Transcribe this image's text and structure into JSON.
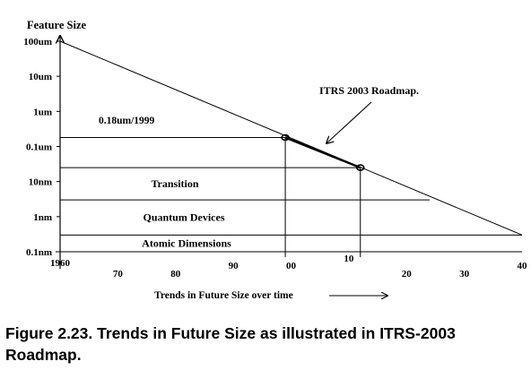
{
  "chart_data": {
    "type": "line",
    "y_axis_label": "Feature Size",
    "y_tick_labels": [
      "100um",
      "10um",
      "1um",
      "0.1um",
      "10nm",
      "1nm",
      "0.1nm"
    ],
    "y_tick_values_m": [
      0.0001,
      1e-05,
      1e-06,
      1e-07,
      1e-08,
      1e-09,
      1e-10
    ],
    "y_scale": "log",
    "x_tick_labels": [
      "1960",
      "70",
      "80",
      "90",
      "00",
      "10",
      "20",
      "30",
      "40"
    ],
    "x_tick_years": [
      1960,
      1970,
      1980,
      1990,
      2000,
      2010,
      2020,
      2030,
      2040
    ],
    "x_axis_label": "Trends in Future  Size over time",
    "trend_line": {
      "x": [
        1960,
        2040
      ],
      "y_m": [
        0.0001,
        3e-10
      ]
    },
    "roadmap_segment": {
      "x": [
        1999,
        2012
      ],
      "y_m": [
        1.8e-07,
        2.5e-08
      ]
    },
    "roadmap_label": "ITRS 2003 Roadmap.",
    "marker_label": "0.18um/1999",
    "regions": [
      {
        "label": "Transition",
        "y_top_m": 2.5e-08,
        "y_bottom_m": 3e-09,
        "x_end": 2024
      },
      {
        "label": "Quantum Devices",
        "y_top_m": 3e-09,
        "y_bottom_m": 3e-10,
        "x_end": 2040
      },
      {
        "label": "Atomic Dimensions",
        "y_top_m": 3e-10,
        "y_bottom_m": 1e-10,
        "x_end": 2040
      }
    ]
  },
  "caption": "Figure 2.23. Trends in Future Size as illustrated in ITRS-2003 Roadmap."
}
